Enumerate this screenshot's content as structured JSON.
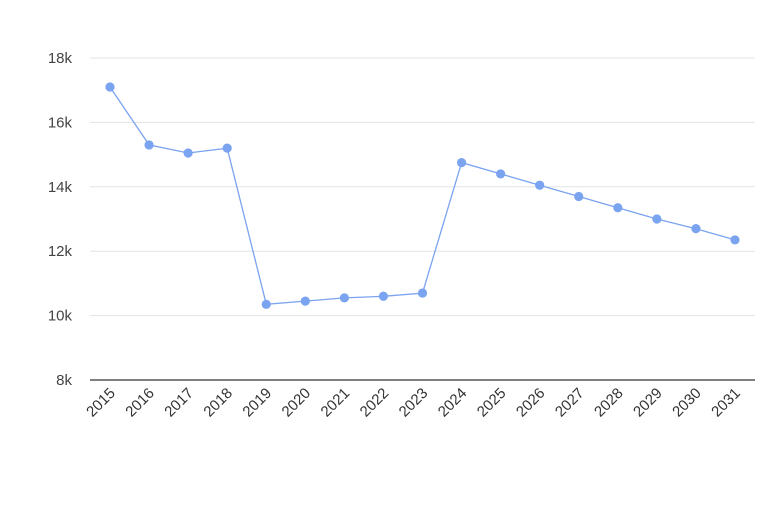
{
  "chart_data": {
    "type": "line",
    "title": "",
    "xlabel": "",
    "ylabel": "",
    "x": [
      "2015",
      "2016",
      "2017",
      "2018",
      "2019",
      "2020",
      "2021",
      "2022",
      "2023",
      "2024",
      "2025",
      "2026",
      "2027",
      "2028",
      "2029",
      "2030",
      "2031"
    ],
    "series": [
      {
        "values": [
          17100,
          15300,
          15050,
          15200,
          10350,
          10450,
          10550,
          10600,
          10700,
          14750,
          14400,
          14050,
          13700,
          13350,
          13000,
          12700,
          12350
        ]
      }
    ],
    "ylim": [
      8000,
      18000
    ],
    "yticks": [
      8000,
      10000,
      12000,
      14000,
      16000,
      18000
    ],
    "ytick_labels": [
      "8k",
      "10k",
      "12k",
      "14k",
      "16k",
      "18k"
    ],
    "grid": true,
    "legend": "none",
    "color": "#7aa3f0"
  }
}
